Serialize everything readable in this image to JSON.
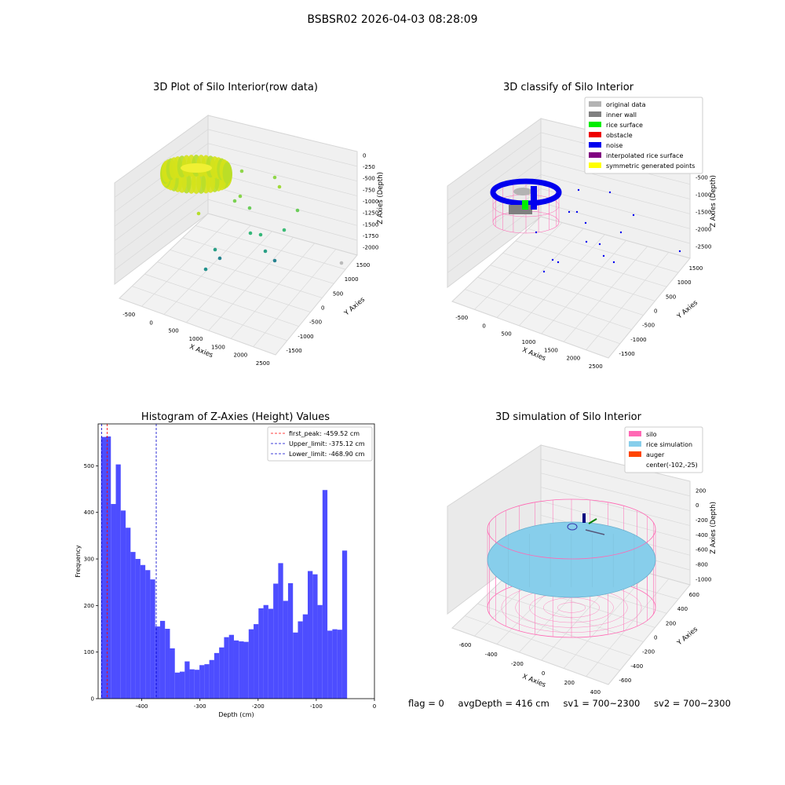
{
  "figure_title": "BSBSR02 2026-04-03 08:28:09",
  "status": {
    "flag": "flag = 0",
    "avg_depth": "avgDepth = 416 cm",
    "sv1": "sv1 = 700~2300",
    "sv2": "sv2 = 700~2300"
  },
  "chart_data": [
    {
      "type": "scatter",
      "title": "3D Plot of Silo Interior(row data)",
      "xlabel": "X Axies",
      "ylabel": "Y Axies",
      "zlabel": "Z Axies (Depth)",
      "xticks": [
        "-500",
        "0",
        "500",
        "1000",
        "1500",
        "2000",
        "2500"
      ],
      "yticks": [
        "-1500",
        "-1000",
        "-500",
        "0",
        "500",
        "1000",
        "1500"
      ],
      "zticks": [
        "0",
        "-250",
        "-500",
        "-750",
        "-1000",
        "-1250",
        "-1500",
        "-1750",
        "-2000"
      ],
      "colormap": "viridis (depth)",
      "grid": true
    },
    {
      "type": "scatter",
      "title": "3D classify of Silo Interior",
      "xlabel": "X Axies",
      "ylabel": "Y Axies",
      "zlabel": "Z Axies (Depth)",
      "xticks": [
        "-500",
        "0",
        "500",
        "1000",
        "1500",
        "2000",
        "2500"
      ],
      "yticks": [
        "-1500",
        "-1000",
        "-500",
        "0",
        "500",
        "1000",
        "1500"
      ],
      "zticks": [
        "0",
        "-500",
        "-1000",
        "-1500",
        "-2000",
        "-2500"
      ],
      "legend_position": "top-right",
      "legend": [
        {
          "label": "original data",
          "color": "#b3b3b3"
        },
        {
          "label": "inner wall",
          "color": "#808080"
        },
        {
          "label": "rice surface",
          "color": "#00ee00"
        },
        {
          "label": "obstacle",
          "color": "#ee0000"
        },
        {
          "label": "noise",
          "color": "#0000ee"
        },
        {
          "label": "interpolated rice surface",
          "color": "#800080"
        },
        {
          "label": "symmetric generated points",
          "color": "#ffff00"
        }
      ],
      "grid": true
    },
    {
      "type": "bar",
      "title": "Histogram of Z-Axies (Height) Values",
      "xlabel": "Depth (cm)",
      "ylabel": "Frequency",
      "xlim": [
        -475,
        0
      ],
      "ylim": [
        0,
        590
      ],
      "xticks": [
        -400,
        -300,
        -200,
        -100,
        0
      ],
      "yticks": [
        0,
        100,
        200,
        300,
        400,
        500
      ],
      "bar_color": "#4d4dff",
      "bin_start": -470,
      "bin_width": 8.46,
      "values": [
        562,
        563,
        418,
        503,
        404,
        367,
        315,
        300,
        287,
        276,
        256,
        155,
        167,
        150,
        108,
        56,
        58,
        80,
        63,
        62,
        72,
        74,
        83,
        98,
        110,
        132,
        137,
        125,
        123,
        122,
        149,
        160,
        194,
        201,
        193,
        247,
        291,
        210,
        248,
        142,
        166,
        181,
        274,
        267,
        201,
        448,
        146,
        149,
        148,
        318
      ],
      "vlines": [
        {
          "label": "first_peak: -459.52 cm",
          "x": -459.52,
          "color": "#ff0000"
        },
        {
          "label": "Upper_limit: -375.12 cm",
          "x": -375.12,
          "color": "#0000cc"
        },
        {
          "label": "Lower_limit: -468.90 cm",
          "x": -468.9,
          "color": "#0000cc"
        }
      ],
      "legend_position": "top-right"
    },
    {
      "type": "scatter",
      "title": "3D simulation of Silo Interior",
      "xlabel": "X Axies",
      "ylabel": "Y Axies",
      "zlabel": "Z Axies (Depth)",
      "xticks": [
        "-600",
        "-400",
        "-200",
        "0",
        "200",
        "400"
      ],
      "yticks": [
        "-600",
        "-400",
        "-200",
        "0",
        "200",
        "400",
        "600"
      ],
      "zticks": [
        "200",
        "0",
        "-200",
        "-400",
        "-600",
        "-800",
        "-1000"
      ],
      "legend_position": "top-right",
      "legend": [
        {
          "label": "silo",
          "color": "#ff69b4"
        },
        {
          "label": "rice simulation",
          "color": "#87ceeb"
        },
        {
          "label": "auger",
          "color": "#ff4500"
        },
        {
          "label": "center(-102,-25)",
          "color": ""
        }
      ],
      "grid": true
    }
  ]
}
